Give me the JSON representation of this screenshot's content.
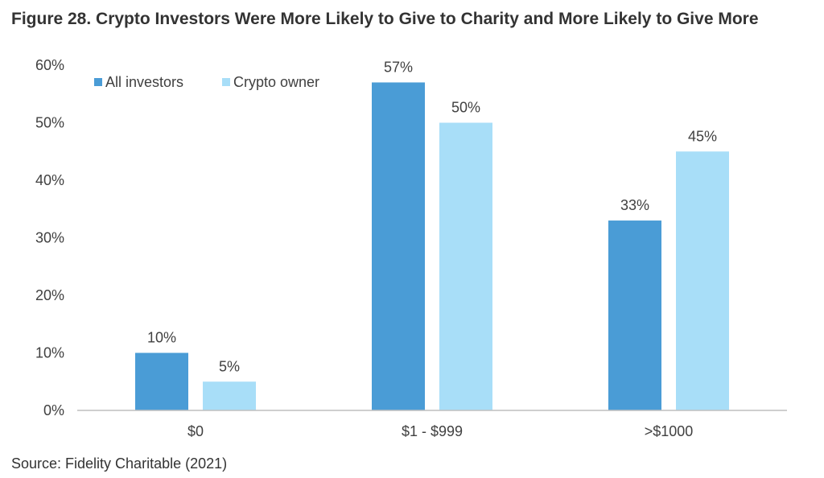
{
  "title": "Figure 28. Crypto Investors Were More Likely to Give to Charity and More Likely to Give More",
  "source": "Source: Fidelity Charitable (2021)",
  "colors": {
    "all_investors": "#4A9CD6",
    "crypto_owner": "#A8DEF8",
    "axis": "#BFBFBF",
    "text": "#404040"
  },
  "chart_data": {
    "type": "bar",
    "title": "Figure 28. Crypto Investors Were More Likely to Give to Charity and More Likely to Give More",
    "categories": [
      "$0",
      "$1 - $999",
      ">$1000"
    ],
    "series": [
      {
        "name": "All investors",
        "values": [
          10,
          57,
          33
        ],
        "labels": [
          "10%",
          "57%",
          "33%"
        ]
      },
      {
        "name": "Crypto owner",
        "values": [
          5,
          50,
          45
        ],
        "labels": [
          "5%",
          "50%",
          "45%"
        ]
      }
    ],
    "ylim": [
      0,
      60
    ],
    "yticks": [
      0,
      10,
      20,
      30,
      40,
      50,
      60
    ],
    "ytick_labels": [
      "0%",
      "10%",
      "20%",
      "30%",
      "40%",
      "50%",
      "60%"
    ],
    "xlabel": "",
    "ylabel": "",
    "grid": false,
    "legend": "top-left"
  }
}
